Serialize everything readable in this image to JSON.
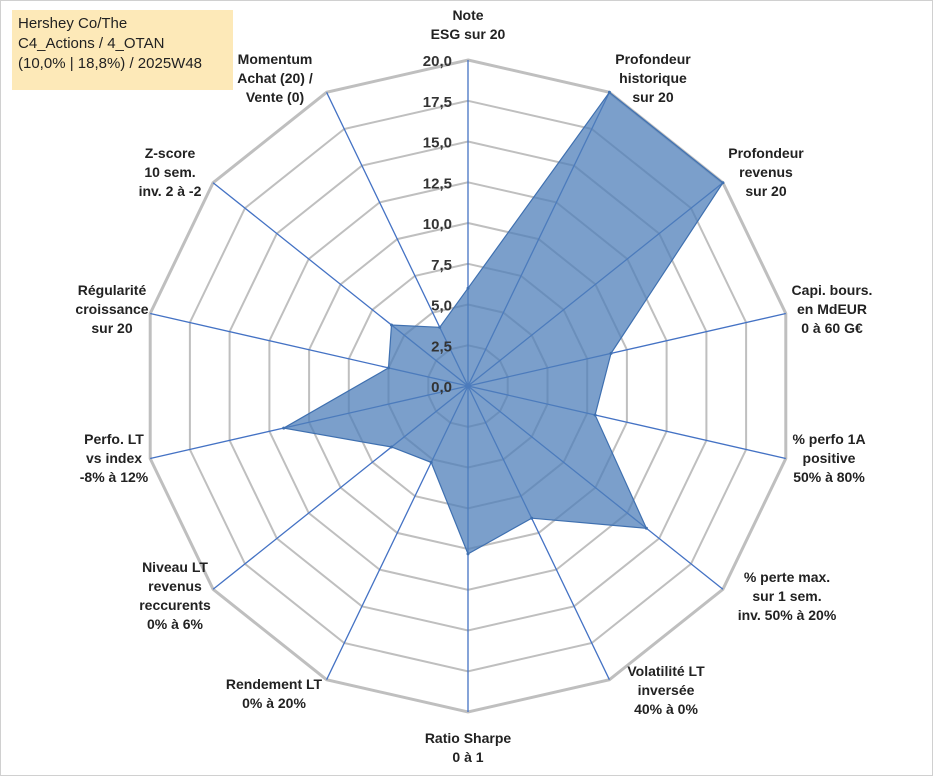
{
  "title_box": {
    "lines": [
      "Hershey Co/The",
      "C4_Actions / 4_OTAN",
      "(10,0% | 18,8%) / 2025W48"
    ]
  },
  "chart_data": {
    "type": "radar",
    "title": "Hershey Co/The C4_Actions / 4_OTAN (10,0% | 18,8%) / 2025W48",
    "rmin": 0,
    "rmax": 20,
    "tick_step": 2.5,
    "tick_labels": [
      "0,0",
      "2,5",
      "5,0",
      "7,5",
      "10,0",
      "12,5",
      "15,0",
      "17,5",
      "20,0"
    ],
    "categories": [
      [
        "Note",
        "ESG sur 20"
      ],
      [
        "Profondeur",
        "historique",
        "sur 20"
      ],
      [
        "Profondeur",
        "revenus",
        "sur 20"
      ],
      [
        "Capi. bours.",
        "en MdEUR",
        "0 à 60 G€"
      ],
      [
        "% perfo 1A",
        "positive",
        "50% à 80%"
      ],
      [
        "% perte max.",
        "sur 1 sem.",
        "inv. 50% à 20%"
      ],
      [
        "Volatilité LT",
        "inversée",
        "40% à 0%"
      ],
      [
        "Ratio Sharpe",
        "0 à 1"
      ],
      [
        "Rendement LT",
        "0% à 20%"
      ],
      [
        "Niveau LT",
        "revenus",
        "reccurents",
        "0% à 6%"
      ],
      [
        "Perfo. LT",
        "vs index",
        "-8% à 12%"
      ],
      [
        "Régularité",
        "croissance",
        "sur 20"
      ],
      [
        "Z-score",
        "10 sem.",
        "inv. 2 à -2"
      ],
      [
        "Momentum",
        "Achat (20) /",
        "Vente (0)"
      ]
    ],
    "series": [
      {
        "values": [
          6.0,
          20.0,
          20.0,
          9.0,
          8.0,
          14.0,
          9.0,
          10.3,
          5.2,
          6.0,
          11.6,
          5.0,
          6.0,
          4.0
        ]
      }
    ],
    "colors": {
      "fill": "#4f7fb9",
      "stroke": "#3f70b0",
      "grid": "#bfbfbf",
      "axis": "#4472c4"
    },
    "grid": true
  }
}
